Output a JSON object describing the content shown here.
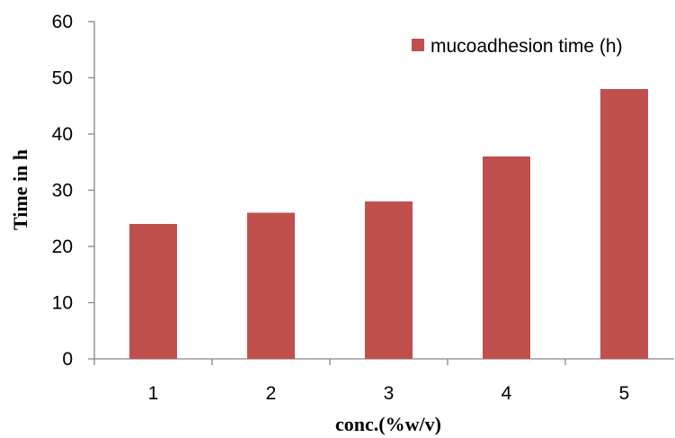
{
  "chart_data": {
    "type": "bar",
    "categories": [
      "1",
      "2",
      "3",
      "4",
      "5"
    ],
    "series": [
      {
        "name": "mucoadhesion time (h)",
        "values": [
          24,
          26,
          28,
          36,
          48
        ]
      }
    ],
    "xlabel": "conc.(%w/v)",
    "ylabel": "Time in h",
    "ylim": [
      0,
      60
    ],
    "yticks": [
      0,
      10,
      20,
      30,
      40,
      50,
      60
    ],
    "grid": false,
    "legend": "top-right",
    "colors": {
      "bar": "#C0504D",
      "axis": "#868686"
    }
  }
}
